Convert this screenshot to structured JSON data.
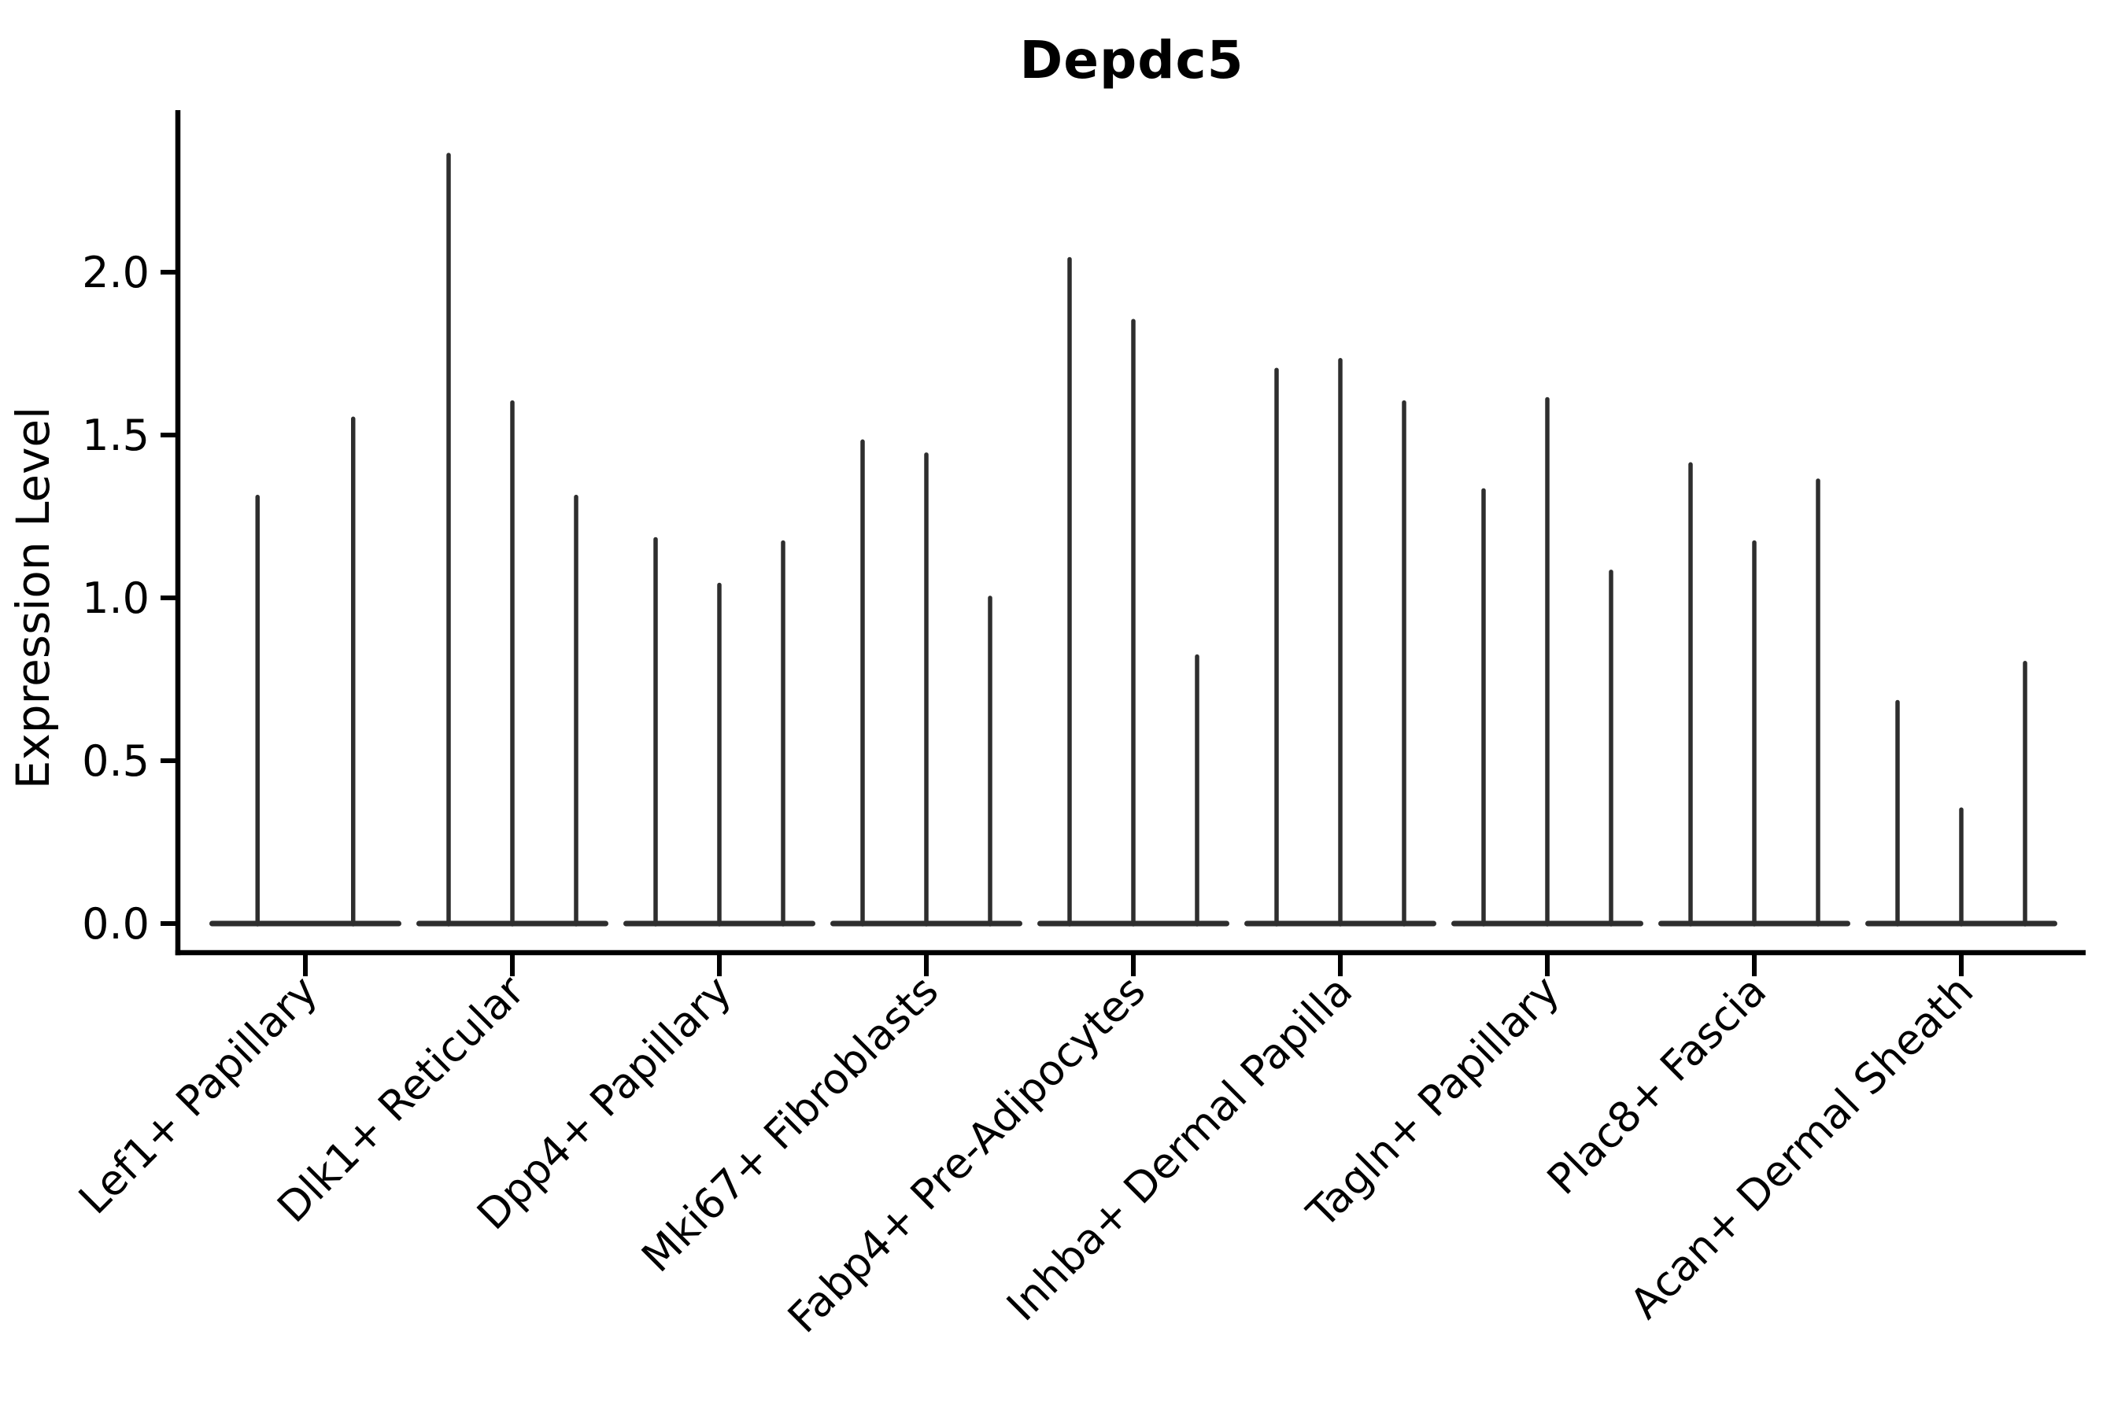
{
  "chart_data": {
    "type": "violin",
    "title": "Depdc5",
    "ylabel": "Expression Level",
    "xlabel": "",
    "ylim": [
      0,
      2.5
    ],
    "y_ticks": [
      0.0,
      0.5,
      1.0,
      1.5,
      2.0
    ],
    "y_tick_labels": [
      "0.0",
      "0.5",
      "1.0",
      "1.5",
      "2.0"
    ],
    "grid": false,
    "legend": false,
    "x_label_rotation_deg": 45,
    "categories": [
      "Lef1+ Papillary",
      "Dlk1+ Reticular",
      "Dpp4+ Papillary",
      "Mki67+ Fibroblasts",
      "Fabp4+ Pre-Adipocytes",
      "Inhba+ Dermal Papilla",
      "Tagln+ Papillary",
      "Plac8+ Fascia",
      "Acan+ Dermal Sheath"
    ],
    "violin_maxima": [
      [
        1.31,
        1.55
      ],
      [
        2.36,
        1.6,
        1.31
      ],
      [
        1.18,
        1.04,
        1.17
      ],
      [
        1.48,
        1.44,
        1.0
      ],
      [
        2.04,
        1.85,
        0.82
      ],
      [
        1.7,
        1.73,
        1.6
      ],
      [
        1.33,
        1.61,
        1.08
      ],
      [
        1.41,
        1.17,
        1.36
      ],
      [
        0.68,
        0.35,
        0.8
      ]
    ],
    "violin_shape_note": "Each violin is an extremely thin vertical spike rising from a flat base bar at expression 0; bases of violins within a category merge into one horizontal bar.",
    "colors": {
      "violin": "#2e2e2e",
      "axis": "#000000",
      "text": "#000000",
      "background": "#ffffff"
    }
  }
}
